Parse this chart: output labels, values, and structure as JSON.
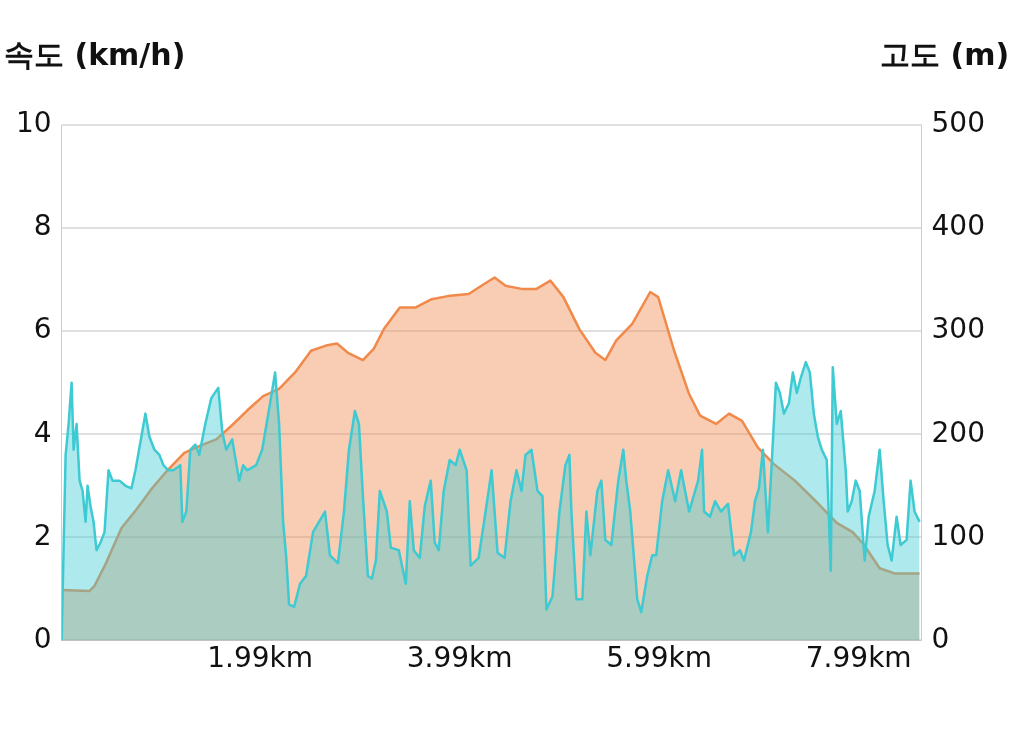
{
  "chart_data": {
    "type": "area",
    "xlabel": null,
    "ylabel": "속도 (km/h)",
    "y2label": "고도 (m)",
    "xlim": [
      0,
      8.62
    ],
    "xticks": [
      {
        "value": 1.99,
        "label": "1.99km"
      },
      {
        "value": 3.99,
        "label": "3.99km"
      },
      {
        "value": 5.99,
        "label": "5.99km"
      },
      {
        "value": 7.99,
        "label": "7.99km"
      }
    ],
    "ylim": [
      0,
      10
    ],
    "yticks": [
      0,
      2,
      4,
      6,
      8,
      10
    ],
    "y2lim": [
      0,
      500
    ],
    "y2ticks": [
      0,
      100,
      200,
      300,
      400,
      500
    ],
    "grid": "y",
    "legend": false,
    "marker": "none",
    "line_style": "solid",
    "series": [
      {
        "color": "#3dcad3",
        "axis": "y",
        "x": [
          0,
          0.04,
          0.07,
          0.1,
          0.12,
          0.15,
          0.18,
          0.21,
          0.24,
          0.26,
          0.29,
          0.32,
          0.35,
          0.39,
          0.43,
          0.47,
          0.51,
          0.58,
          0.64,
          0.7,
          0.74,
          0.84,
          0.88,
          0.93,
          0.98,
          1.02,
          1.07,
          1.12,
          1.19,
          1.21,
          1.25,
          1.29,
          1.34,
          1.38,
          1.44,
          1.5,
          1.57,
          1.61,
          1.65,
          1.71,
          1.78,
          1.82,
          1.86,
          1.95,
          2.01,
          2.09,
          2.14,
          2.18,
          2.22,
          2.25,
          2.28,
          2.33,
          2.39,
          2.45,
          2.52,
          2.58,
          2.64,
          2.69,
          2.77,
          2.83,
          2.88,
          2.94,
          2.98,
          3.02,
          3.07,
          3.11,
          3.15,
          3.19,
          3.26,
          3.3,
          3.38,
          3.45,
          3.49,
          3.53,
          3.59,
          3.64,
          3.7,
          3.74,
          3.78,
          3.83,
          3.89,
          3.95,
          3.99,
          4.06,
          4.1,
          4.18,
          4.25,
          4.31,
          4.37,
          4.44,
          4.5,
          4.56,
          4.61,
          4.65,
          4.71,
          4.77,
          4.82,
          4.86,
          4.92,
          4.99,
          5.05,
          5.09,
          5.11,
          5.16,
          5.22,
          5.26,
          5.3,
          5.37,
          5.41,
          5.45,
          5.51,
          5.58,
          5.63,
          5.66,
          5.7,
          5.77,
          5.81,
          5.87,
          5.92,
          5.96,
          6.02,
          6.08,
          6.15,
          6.21,
          6.25,
          6.29,
          6.38,
          6.42,
          6.44,
          6.5,
          6.55,
          6.61,
          6.68,
          6.74,
          6.8,
          6.84,
          6.91,
          6.95,
          6.99,
          7.03,
          7.08,
          7.12,
          7.16,
          7.2,
          7.24,
          7.29,
          7.33,
          7.37,
          7.41,
          7.46,
          7.5,
          7.54,
          7.58,
          7.62,
          7.67,
          7.71,
          7.73,
          7.77,
          7.81,
          7.86,
          7.88,
          7.92,
          7.96,
          8.0,
          8.05,
          8.09,
          8.15,
          8.2,
          8.24,
          8.28,
          8.32,
          8.37,
          8.41,
          8.47,
          8.51,
          8.55,
          8.6
        ],
        "values": [
          0,
          3.6,
          4.2,
          5.0,
          3.7,
          4.2,
          3.1,
          2.9,
          2.3,
          3.0,
          2.6,
          2.3,
          1.75,
          1.9,
          2.1,
          3.3,
          3.1,
          3.1,
          3.0,
          2.95,
          3.3,
          4.4,
          3.95,
          3.7,
          3.6,
          3.4,
          3.3,
          3.3,
          3.4,
          2.3,
          2.5,
          3.7,
          3.8,
          3.6,
          4.2,
          4.7,
          4.9,
          4.05,
          3.7,
          3.9,
          3.1,
          3.4,
          3.3,
          3.4,
          3.7,
          4.6,
          5.2,
          4.2,
          2.3,
          1.65,
          0.7,
          0.65,
          1.1,
          1.25,
          2.1,
          2.3,
          2.5,
          1.65,
          1.5,
          2.5,
          3.7,
          4.45,
          4.2,
          2.8,
          1.25,
          1.2,
          1.55,
          2.9,
          2.5,
          1.8,
          1.75,
          1.1,
          2.7,
          1.75,
          1.6,
          2.6,
          3.1,
          1.9,
          1.75,
          2.9,
          3.5,
          3.4,
          3.7,
          3.3,
          1.45,
          1.6,
          2.5,
          3.3,
          1.7,
          1.6,
          2.7,
          3.3,
          2.9,
          3.6,
          3.7,
          2.9,
          2.8,
          0.6,
          0.85,
          2.5,
          3.4,
          3.6,
          2.5,
          0.8,
          0.8,
          2.5,
          1.65,
          2.9,
          3.1,
          1.95,
          1.85,
          3.1,
          3.7,
          3.1,
          2.5,
          0.8,
          0.55,
          1.25,
          1.65,
          1.65,
          2.7,
          3.3,
          2.7,
          3.3,
          2.9,
          2.5,
          3.1,
          3.7,
          2.5,
          2.4,
          2.7,
          2.5,
          2.65,
          1.65,
          1.75,
          1.55,
          2.1,
          2.7,
          2.95,
          3.7,
          2.1,
          3.5,
          5.0,
          4.8,
          4.4,
          4.6,
          5.2,
          4.8,
          5.1,
          5.4,
          5.2,
          4.4,
          3.95,
          3.7,
          3.5,
          1.35,
          5.3,
          4.2,
          4.45,
          3.3,
          2.5,
          2.7,
          3.1,
          2.9,
          1.55,
          2.4,
          2.9,
          3.7,
          2.7,
          1.85,
          1.55,
          2.4,
          1.85,
          1.95,
          3.1,
          2.5,
          2.3
        ]
      },
      {
        "color": "#f0894a",
        "axis": "y2",
        "x": [
          0,
          0.28,
          0.33,
          0.44,
          0.6,
          0.75,
          0.91,
          1.07,
          1.23,
          1.39,
          1.55,
          1.7,
          1.86,
          2.02,
          2.18,
          2.34,
          2.5,
          2.65,
          2.76,
          2.87,
          3.02,
          3.13,
          3.23,
          3.39,
          3.55,
          3.71,
          3.87,
          4.08,
          4.24,
          4.34,
          4.45,
          4.61,
          4.76,
          4.9,
          5.03,
          5.19,
          5.35,
          5.45,
          5.56,
          5.72,
          5.9,
          5.98,
          6.14,
          6.29,
          6.4,
          6.56,
          6.69,
          6.82,
          6.98,
          7.14,
          7.35,
          7.56,
          7.77,
          7.93,
          8.04,
          8.2,
          8.35,
          8.6
        ],
        "values": [
          49,
          48,
          53,
          74,
          109,
          127,
          148,
          166,
          182,
          189,
          195,
          208,
          223,
          237,
          244,
          260,
          281,
          286,
          288,
          279,
          272,
          283,
          302,
          323,
          323,
          331,
          334,
          336,
          346,
          352,
          344,
          341,
          341,
          349,
          333,
          302,
          279,
          272,
          291,
          307,
          338,
          333,
          281,
          239,
          218,
          210,
          220,
          213,
          187,
          171,
          155,
          135,
          114,
          105,
          93,
          70,
          65,
          65
        ]
      }
    ]
  }
}
